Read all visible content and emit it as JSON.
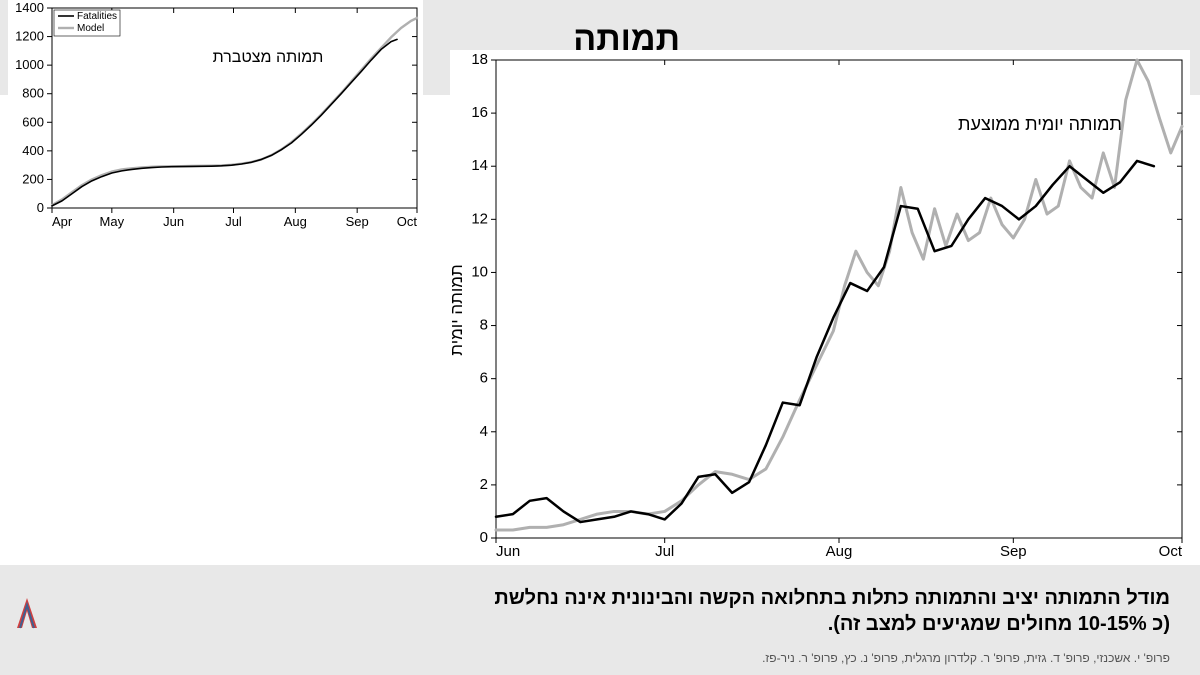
{
  "page_title": "תמותה",
  "chart_small": {
    "type": "line",
    "title": "תמותה מצטברת",
    "title_fontsize": 16,
    "xlabel": "",
    "ylabel": "",
    "xlim": [
      0,
      183
    ],
    "ylim": [
      0,
      1400
    ],
    "ytick_step": 200,
    "x_ticks": [
      0,
      30,
      61,
      91,
      122,
      153,
      183
    ],
    "x_tick_labels": [
      "Apr",
      "May",
      "Jun",
      "Jul",
      "Aug",
      "Sep",
      "Oct"
    ],
    "background_color": "#ffffff",
    "axis_color": "#000000",
    "grid": false,
    "tick_fontsize": 13,
    "legend": {
      "items": [
        {
          "label": "Fatalities",
          "color": "#000000",
          "width": 1.6
        },
        {
          "label": "Model",
          "color": "#b0b0b0",
          "width": 2.4
        }
      ],
      "position": "upper-left",
      "fontsize": 10
    },
    "series": [
      {
        "name": "Model",
        "color": "#b0b0b0",
        "width": 2.4,
        "x": [
          0,
          5,
          10,
          15,
          20,
          25,
          30,
          35,
          40,
          45,
          50,
          55,
          60,
          65,
          70,
          75,
          80,
          85,
          90,
          95,
          100,
          105,
          110,
          115,
          120,
          125,
          130,
          135,
          140,
          145,
          150,
          155,
          160,
          165,
          170,
          175,
          180,
          183
        ],
        "y": [
          20,
          60,
          110,
          160,
          200,
          230,
          255,
          270,
          278,
          284,
          288,
          291,
          292,
          293,
          294,
          295,
          296,
          298,
          302,
          310,
          322,
          340,
          370,
          410,
          460,
          520,
          585,
          655,
          730,
          805,
          885,
          965,
          1045,
          1120,
          1195,
          1260,
          1310,
          1330
        ]
      },
      {
        "name": "Fatalities",
        "color": "#000000",
        "width": 1.6,
        "x": [
          0,
          5,
          10,
          15,
          20,
          25,
          30,
          35,
          40,
          45,
          50,
          55,
          60,
          65,
          70,
          75,
          80,
          85,
          90,
          95,
          100,
          105,
          110,
          115,
          120,
          125,
          130,
          135,
          140,
          145,
          150,
          155,
          160,
          165,
          170,
          173
        ],
        "y": [
          15,
          50,
          100,
          150,
          190,
          220,
          245,
          260,
          270,
          278,
          283,
          287,
          289,
          290,
          291,
          292,
          293,
          295,
          300,
          308,
          320,
          340,
          368,
          408,
          455,
          515,
          580,
          650,
          725,
          800,
          878,
          955,
          1035,
          1110,
          1165,
          1180
        ]
      }
    ]
  },
  "chart_large": {
    "type": "line",
    "title": "תמותה יומית ממוצעת",
    "title_fontsize": 18,
    "ylabel": "תמותה יומית",
    "ylabel_fontsize": 17,
    "xlim": [
      0,
      122
    ],
    "ylim": [
      0,
      18
    ],
    "ytick_step": 2,
    "x_ticks": [
      0,
      30,
      61,
      92,
      122
    ],
    "x_tick_labels": [
      "Jun",
      "Jul",
      "Aug",
      "Sep",
      "Oct"
    ],
    "background_color": "#ffffff",
    "axis_color": "#000000",
    "grid": false,
    "tick_fontsize": 15,
    "series": [
      {
        "name": "Model",
        "color": "#b0b0b0",
        "width": 3.0,
        "x": [
          0,
          3,
          6,
          9,
          12,
          15,
          18,
          21,
          24,
          27,
          30,
          33,
          36,
          39,
          42,
          45,
          48,
          51,
          54,
          57,
          60,
          62,
          64,
          66,
          68,
          70,
          72,
          74,
          76,
          78,
          80,
          82,
          84,
          86,
          88,
          90,
          92,
          94,
          96,
          98,
          100,
          102,
          104,
          106,
          108,
          110,
          112,
          114,
          116,
          118,
          120,
          122
        ],
        "y": [
          0.3,
          0.3,
          0.4,
          0.4,
          0.5,
          0.7,
          0.9,
          1.0,
          1.0,
          0.9,
          1.0,
          1.4,
          2.0,
          2.5,
          2.4,
          2.2,
          2.6,
          3.8,
          5.2,
          6.5,
          7.8,
          9.5,
          10.8,
          10.0,
          9.5,
          10.8,
          13.2,
          11.5,
          10.5,
          12.4,
          11.0,
          12.2,
          11.2,
          11.5,
          12.8,
          11.8,
          11.3,
          12.0,
          13.5,
          12.2,
          12.5,
          14.2,
          13.2,
          12.8,
          14.5,
          13.2,
          16.5,
          18.0,
          17.2,
          15.8,
          14.5,
          15.5
        ]
      },
      {
        "name": "Fatalities",
        "color": "#000000",
        "width": 2.5,
        "x": [
          0,
          3,
          6,
          9,
          12,
          15,
          18,
          21,
          24,
          27,
          30,
          33,
          36,
          39,
          42,
          45,
          48,
          51,
          54,
          57,
          60,
          63,
          66,
          69,
          72,
          75,
          78,
          81,
          84,
          87,
          90,
          93,
          96,
          99,
          102,
          105,
          108,
          111,
          114,
          117
        ],
        "y": [
          0.8,
          0.9,
          1.4,
          1.5,
          1.0,
          0.6,
          0.7,
          0.8,
          1.0,
          0.9,
          0.7,
          1.3,
          2.3,
          2.4,
          1.7,
          2.1,
          3.5,
          5.1,
          5.0,
          6.8,
          8.3,
          9.6,
          9.3,
          10.2,
          12.5,
          12.4,
          10.8,
          11.0,
          12.0,
          12.8,
          12.5,
          12.0,
          12.5,
          13.3,
          14.0,
          13.5,
          13.0,
          13.4,
          14.2,
          14.0
        ]
      }
    ]
  },
  "bottom_line1": "מודל התמותה יציב והתמותה כתלות בתחלואה הקשה והבינונית אינה נחלשת",
  "bottom_line2": "(כ 10-15% מחולים שמגיעים למצב זה).",
  "credits": "פרופ' י. אשכנזי, פרופ' ד. גזית, פרופ' ר. קלדרון מרגלית, פרופ' נ. כץ, פרופ' ר. ניר-פז."
}
